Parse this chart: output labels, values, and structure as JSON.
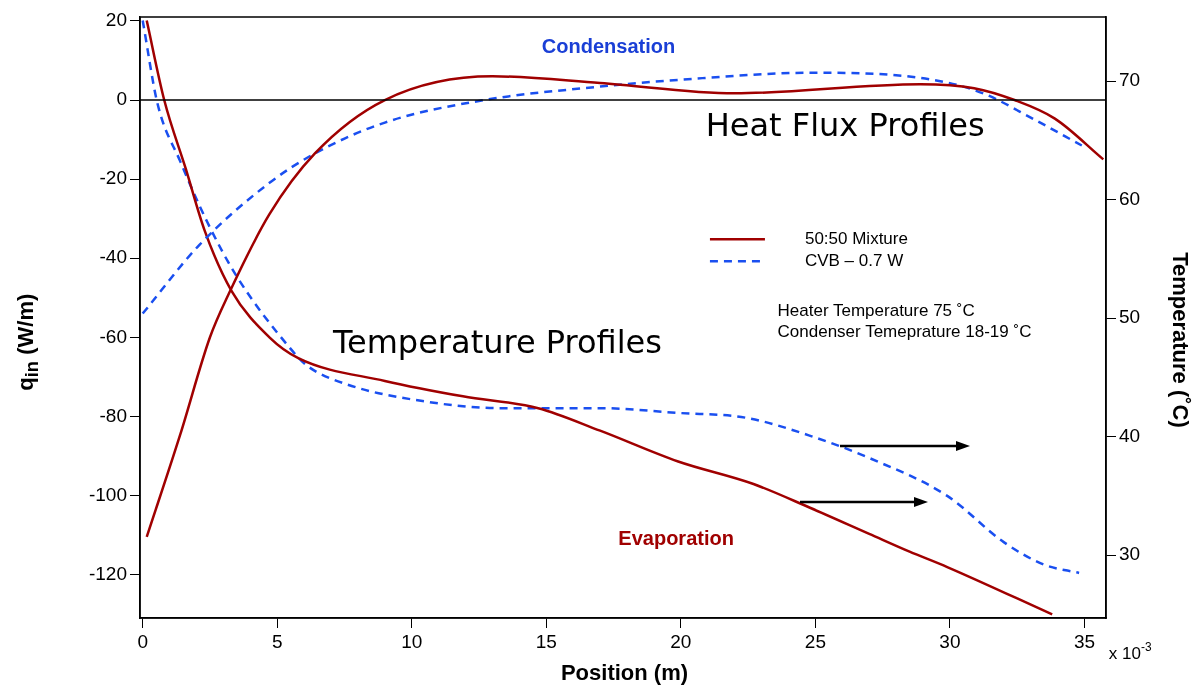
{
  "chart_data": {
    "type": "line",
    "xlabel": "Position (m)",
    "ylabel": "q$_{in}$ (W/m)",
    "y2label": "Temperature (˚C)",
    "xlim": [
      -0.1,
      35.8
    ],
    "xticks": [
      0,
      5,
      10,
      15,
      20,
      25,
      30,
      35
    ],
    "ylim": [
      -131,
      21
    ],
    "yticks": [
      -120,
      -100,
      -80,
      -60,
      -40,
      -20,
      0,
      20
    ],
    "y2lim": [
      24.7,
      75.4
    ],
    "y2ticks": [
      30,
      40,
      50,
      60,
      70
    ],
    "legend": "right",
    "marker": "none",
    "ref_lines": [
      {
        "axis": "y",
        "value": 0,
        "color": "#000000"
      }
    ],
    "annotations": [
      "Condensation",
      "Evaporation",
      "Heat Flux Profiles",
      "Temperature Profiles",
      "Heater Temperature 75 ˚C",
      "Condenser Temeprature 18-19 ˚C",
      "x 10$^{-3}$"
    ],
    "series": [
      {
        "name": "50:50 Mixture",
        "color": "#a00000",
        "line_style": "solid",
        "x": [
          0.15,
          1.4,
          2.5,
          3.2,
          4.7,
          6.4,
          9,
          13,
          17,
          22,
          28.9,
          30.9,
          32.4,
          33.9,
          35.7
        ],
        "values": [
          -110.5,
          -84.5,
          -60,
          -49,
          -29,
          -13.5,
          0,
          6,
          4.3,
          1.7,
          4,
          3,
          0,
          -4.7,
          -15
        ]
      },
      {
        "name": "CVB – 0.7 W",
        "color": "#1a4ff0",
        "line_style": "dashed",
        "x": [
          0,
          2.1,
          4.7,
          6.4,
          9,
          12.7,
          17,
          19.9,
          24.9,
          27.3,
          29.9,
          31.3,
          33.1,
          34.9
        ],
        "values": [
          -54,
          -36.7,
          -21,
          -13.5,
          -5.7,
          0,
          3.4,
          5.1,
          6.9,
          6.6,
          4.4,
          1.5,
          -4.8,
          -11.5
        ]
      },
      {
        "color": "#a00000",
        "line_style": "solid",
        "axis": "y2",
        "x": [
          0.15,
          0.8,
          1.6,
          2.3,
          3.3,
          4.7,
          5.8,
          9,
          11.9,
          14.7,
          17,
          19.9,
          22.7,
          24.8,
          27,
          28.5,
          29.9,
          33.8
        ],
        "values": [
          75.1,
          68.4,
          62.6,
          57.4,
          52.3,
          48.4,
          46.6,
          44.7,
          43.4,
          42.4,
          40.5,
          37.9,
          36,
          34,
          31.8,
          30.3,
          29,
          25
        ]
      },
      {
        "color": "#1a4ff0",
        "line_style": "dashed",
        "axis": "y2",
        "x": [
          0,
          0.55,
          1.4,
          2.4,
          3.5,
          5.5,
          6.1,
          7.6,
          10.4,
          13.3,
          17,
          19.9,
          22.4,
          24.9,
          27,
          29.9,
          32,
          33.5,
          34.8
        ],
        "values": [
          75.1,
          68.1,
          63.2,
          58.1,
          53.5,
          47.4,
          46,
          44.4,
          43,
          42.4,
          42.4,
          42,
          41.6,
          40,
          38.2,
          35,
          31.1,
          29.2,
          28.5
        ]
      }
    ]
  }
}
